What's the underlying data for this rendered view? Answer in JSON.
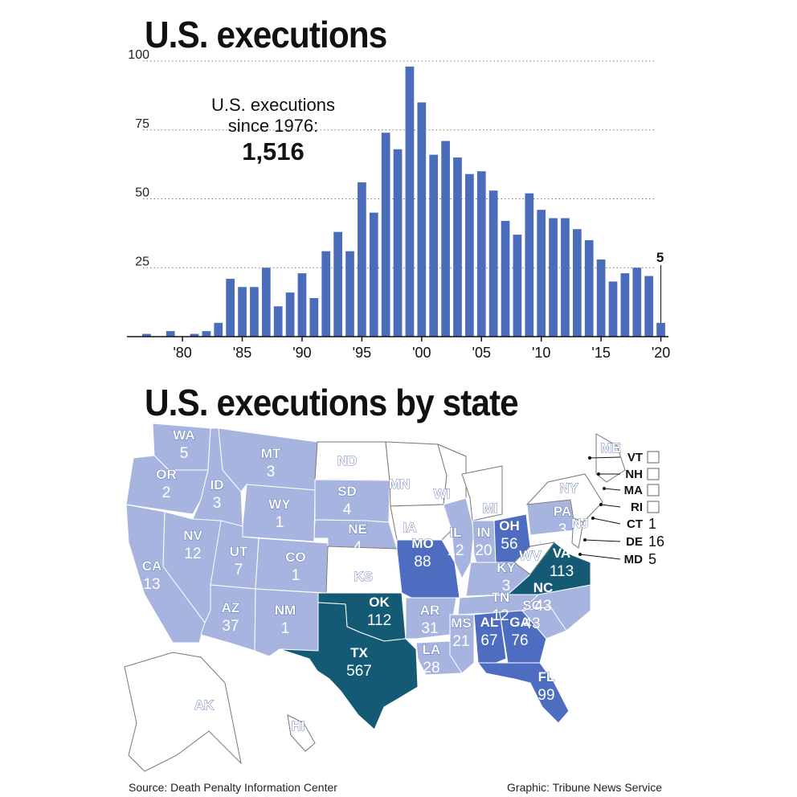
{
  "top_title": "U.S. executions",
  "callout": {
    "line1": "U.S. executions",
    "line2": "since 1976:",
    "total": "1,516"
  },
  "map_title": "U.S. executions by state",
  "footer": {
    "source": "Source: Death Penalty Information Center",
    "credit": "Graphic: Tribune News Service"
  },
  "colors": {
    "bar": "#4a6cbb",
    "light": "#a6b4df",
    "medium": "#4e6cc0",
    "dark": "#145a75",
    "none": "#ffffff"
  },
  "chart_data": {
    "type": "bar",
    "title": "U.S. executions",
    "x": [
      1977,
      1978,
      1979,
      1980,
      1981,
      1982,
      1983,
      1984,
      1985,
      1986,
      1987,
      1988,
      1989,
      1990,
      1991,
      1992,
      1993,
      1994,
      1995,
      1996,
      1997,
      1998,
      1999,
      2000,
      2001,
      2002,
      2003,
      2004,
      2005,
      2006,
      2007,
      2008,
      2009,
      2010,
      2011,
      2012,
      2013,
      2014,
      2015,
      2016,
      2017,
      2018,
      2019,
      2020
    ],
    "values": [
      1,
      0,
      2,
      0,
      1,
      2,
      5,
      21,
      18,
      18,
      25,
      11,
      16,
      23,
      14,
      31,
      38,
      31,
      56,
      45,
      74,
      68,
      98,
      85,
      66,
      71,
      65,
      59,
      60,
      53,
      42,
      37,
      52,
      46,
      43,
      43,
      39,
      35,
      28,
      20,
      23,
      25,
      22,
      5
    ],
    "yticks": [
      0,
      25,
      50,
      75,
      100
    ],
    "ytick_labels": [
      "25",
      "50",
      "75",
      "100"
    ],
    "xtick_values": [
      1980,
      1985,
      1990,
      1995,
      2000,
      2005,
      2010,
      2015,
      2020
    ],
    "xtick_labels": [
      "'80",
      "'85",
      "'90",
      "'95",
      "'00",
      "'05",
      "'10",
      "'15",
      "'20"
    ],
    "ylim": [
      0,
      100
    ],
    "grid": true,
    "annotation": {
      "year": 2020,
      "label": "5"
    }
  },
  "states": [
    {
      "abbr": "WA",
      "value": "5",
      "tier": "light"
    },
    {
      "abbr": "OR",
      "value": "2",
      "tier": "light"
    },
    {
      "abbr": "CA",
      "value": "13",
      "tier": "light"
    },
    {
      "abbr": "ID",
      "value": "3",
      "tier": "light"
    },
    {
      "abbr": "NV",
      "value": "12",
      "tier": "light"
    },
    {
      "abbr": "MT",
      "value": "3",
      "tier": "light"
    },
    {
      "abbr": "WY",
      "value": "1",
      "tier": "light"
    },
    {
      "abbr": "UT",
      "value": "7",
      "tier": "light"
    },
    {
      "abbr": "CO",
      "value": "1",
      "tier": "light"
    },
    {
      "abbr": "AZ",
      "value": "37",
      "tier": "light"
    },
    {
      "abbr": "NM",
      "value": "1",
      "tier": "light"
    },
    {
      "abbr": "ND",
      "value": "",
      "tier": "none"
    },
    {
      "abbr": "SD",
      "value": "4",
      "tier": "light"
    },
    {
      "abbr": "NE",
      "value": "4",
      "tier": "light"
    },
    {
      "abbr": "KS",
      "value": "",
      "tier": "none"
    },
    {
      "abbr": "OK",
      "value": "112",
      "tier": "dark"
    },
    {
      "abbr": "TX",
      "value": "567",
      "tier": "dark"
    },
    {
      "abbr": "MN",
      "value": "",
      "tier": "none"
    },
    {
      "abbr": "IA",
      "value": "",
      "tier": "none"
    },
    {
      "abbr": "MO",
      "value": "88",
      "tier": "medium"
    },
    {
      "abbr": "AR",
      "value": "31",
      "tier": "light"
    },
    {
      "abbr": "LA",
      "value": "28",
      "tier": "light"
    },
    {
      "abbr": "WI",
      "value": "",
      "tier": "none"
    },
    {
      "abbr": "IL",
      "value": "12",
      "tier": "light"
    },
    {
      "abbr": "MI",
      "value": "",
      "tier": "none"
    },
    {
      "abbr": "IN",
      "value": "20",
      "tier": "light"
    },
    {
      "abbr": "OH",
      "value": "56",
      "tier": "medium"
    },
    {
      "abbr": "KY",
      "value": "3",
      "tier": "light"
    },
    {
      "abbr": "TN",
      "value": "12",
      "tier": "light"
    },
    {
      "abbr": "MS",
      "value": "21",
      "tier": "light"
    },
    {
      "abbr": "AL",
      "value": "67",
      "tier": "medium"
    },
    {
      "abbr": "GA",
      "value": "76",
      "tier": "medium"
    },
    {
      "abbr": "FL",
      "value": "99",
      "tier": "medium"
    },
    {
      "abbr": "SC",
      "value": "43",
      "tier": "light"
    },
    {
      "abbr": "NC",
      "value": "43",
      "tier": "light"
    },
    {
      "abbr": "VA",
      "value": "113",
      "tier": "dark"
    },
    {
      "abbr": "WV",
      "value": "",
      "tier": "none"
    },
    {
      "abbr": "PA",
      "value": "3",
      "tier": "light"
    },
    {
      "abbr": "NY",
      "value": "",
      "tier": "none"
    },
    {
      "abbr": "NJ",
      "value": "",
      "tier": "none"
    },
    {
      "abbr": "ME",
      "value": "",
      "tier": "none"
    },
    {
      "abbr": "AK",
      "value": "",
      "tier": "none"
    },
    {
      "abbr": "HI",
      "value": "",
      "tier": "none"
    }
  ],
  "northeast_callouts": [
    {
      "abbr": "VT",
      "value": ""
    },
    {
      "abbr": "NH",
      "value": ""
    },
    {
      "abbr": "MA",
      "value": ""
    },
    {
      "abbr": "RI",
      "value": ""
    },
    {
      "abbr": "CT",
      "value": "1"
    },
    {
      "abbr": "DE",
      "value": "16"
    },
    {
      "abbr": "MD",
      "value": "5"
    }
  ]
}
